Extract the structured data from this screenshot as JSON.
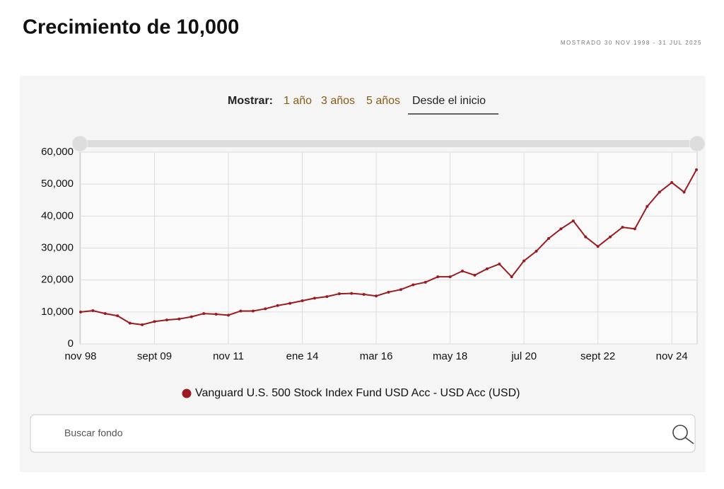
{
  "header": {
    "title": "Crecimiento de 10,000",
    "subtitle": "MOSTRADO 30 NOV 1998 - 31 JUL 2025"
  },
  "controls": {
    "label": "Mostrar:",
    "options": [
      "1 año",
      "3 años",
      "5 años",
      "Desde el inicio"
    ]
  },
  "chart_data": {
    "type": "line",
    "categories": [
      "nov 98",
      null,
      null,
      null,
      null,
      null,
      "sept 09",
      null,
      null,
      null,
      null,
      null,
      "nov 11",
      null,
      null,
      null,
      null,
      null,
      "ene 14",
      null,
      null,
      null,
      null,
      null,
      "mar 16",
      null,
      null,
      null,
      null,
      null,
      "may 18",
      null,
      null,
      null,
      null,
      null,
      "jul 20",
      null,
      null,
      null,
      null,
      null,
      "sept 22",
      null,
      null,
      null,
      null,
      null,
      "nov 24",
      null,
      null
    ],
    "series": [
      {
        "name": "Vanguard U.S. 500 Stock Index Fund USD Acc - USD Acc (USD)",
        "color": "#9b1b20",
        "values": [
          10000,
          10400,
          9500,
          8800,
          6500,
          6000,
          7000,
          7500,
          7800,
          8500,
          9500,
          9300,
          9000,
          10300,
          10300,
          11000,
          12000,
          12700,
          13500,
          14300,
          14800,
          15700,
          15800,
          15500,
          15000,
          16200,
          17000,
          18500,
          19300,
          21000,
          21000,
          22800,
          21500,
          23500,
          25000,
          21000,
          26000,
          29000,
          33000,
          36000,
          38500,
          33500,
          30500,
          33500,
          36500,
          36000,
          43000,
          47500,
          50500,
          47500,
          54500
        ]
      }
    ],
    "ylim": [
      0,
      60000
    ],
    "yticks": [
      0,
      {
        "value": 10000,
        "label": "10,000"
      },
      {
        "value": 20000,
        "label": "20,000"
      },
      {
        "value": 30000,
        "label": "30,000"
      },
      {
        "value": 40000,
        "label": "40,000"
      },
      {
        "value": 50000,
        "label": "50,000"
      },
      {
        "value": 60000,
        "label": "60,000"
      }
    ],
    "grid": true
  },
  "search": {
    "placeholder": "Buscar fondo"
  }
}
